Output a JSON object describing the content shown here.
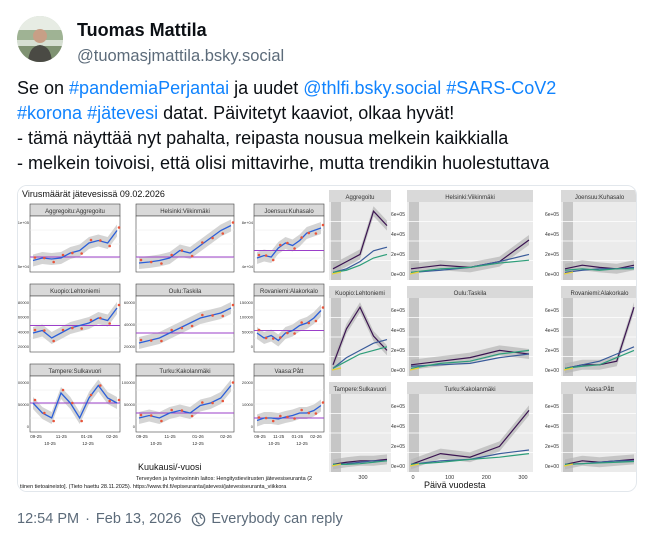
{
  "author": {
    "name": "Tuomas Mattila",
    "handle": "@tuomasjmattila.bsky.social"
  },
  "post": {
    "line1": [
      {
        "text": "Se on ",
        "link": false
      },
      {
        "text": "#pandemiaPerjantai",
        "link": true
      },
      {
        "text": " ja uudet ",
        "link": false
      },
      {
        "text": "@thlfi.bsky.social",
        "link": true
      },
      {
        "text": " ",
        "link": false
      },
      {
        "text": "#SARS-CoV2",
        "link": true
      }
    ],
    "line2": [
      {
        "text": "#korona",
        "link": true
      },
      {
        "text": " ",
        "link": false
      },
      {
        "text": "#jätevesi",
        "link": true
      },
      {
        "text": " datat. Päivitetyt kaaviot, olkaa hyvät!",
        "link": false
      }
    ],
    "line3": "- tämä näyttää nyt pahalta, reipasta nousua melkein kaikkialla",
    "line4": "- melkein toivoisi, että olisi mittavirhe, mutta trendikin huolestuttava"
  },
  "image1": {
    "title": "Virusmäärät jätevesissä 09.02.2026",
    "panels": [
      {
        "label": "Aggregoitu:Aggregoitu"
      },
      {
        "label": "Helsinki:Viikinmäki"
      },
      {
        "label": "Joensuu:Kuhasalo"
      },
      {
        "label": "Kuopio:Lehtoniemi"
      },
      {
        "label": "Oulu:Taskila"
      },
      {
        "label": "Rovaniemi:Alakorkalo"
      },
      {
        "label": "Tampere:Sulkavuori"
      },
      {
        "label": "Turku:Kakolanmäki"
      },
      {
        "label": "Vaasa:Pått"
      }
    ],
    "yticks": {
      "p1": [
        "1e+05",
        "5e+04"
      ],
      "p3": [
        "8e+04",
        "4e+04"
      ],
      "p4": [
        "80000",
        "60000",
        "40000",
        "20000"
      ],
      "p5": [
        "60000",
        "40000",
        "20000"
      ],
      "p6": [
        "150000",
        "100000",
        "50000",
        "0"
      ],
      "p7": [
        "100000",
        "50000",
        "0"
      ],
      "p8": [
        "100000",
        "50000",
        "0"
      ],
      "p9": [
        "20000",
        "10000",
        "0"
      ]
    },
    "xticks_row3": [
      "09-25",
      "11-25",
      "01-26",
      "02-26"
    ],
    "xticks_row3b": [
      "10-25",
      "12-25"
    ],
    "xlabel": "Kuukausi/-vuosi",
    "caption1": "Terveyden ja hyvinvoinnin laitos: Hengitystieviirusten jätevesiseuranta (2",
    "caption2": "tiinen tietoaineisto]. (Tieto haettu 28.11.2025). https://www.thl.fi/episeuranta/jatevesi/jatevesiseuranta_viikkora"
  },
  "image2": {
    "panels": [
      {
        "label": "Aggregoitu"
      },
      {
        "label": "Helsinki:Viikinmäki"
      },
      {
        "label": "Joensuu:Kuhasalo"
      },
      {
        "label": "Kuopio:Lehtoniemi"
      },
      {
        "label": "Oulu:Taskila"
      },
      {
        "label": "Rovaniemi:Alakorkalo"
      },
      {
        "label": "Tampere:Sulkavuori"
      },
      {
        "label": "Turku:Kakolanmäki"
      },
      {
        "label": "Vaasa:Pått"
      }
    ],
    "yticks": [
      "6e+05",
      "4e+05",
      "2e+05",
      "0e+00"
    ],
    "xticks": [
      "0",
      "100",
      "200",
      "300"
    ],
    "xtick_left": "300",
    "xlabel": "Päivä vuodesta"
  },
  "footer": {
    "time": "12:54 PM",
    "separator": "·",
    "date": "Feb 13, 2026",
    "reply": "Everybody can reply"
  },
  "colors": {
    "link": "#1083fe",
    "muted": "#5c6b7a",
    "trend": "#2b5fd9",
    "points": "#e8553b",
    "ribbon": "#c9c9c9",
    "purple_ref": "#9b3fc9"
  }
}
